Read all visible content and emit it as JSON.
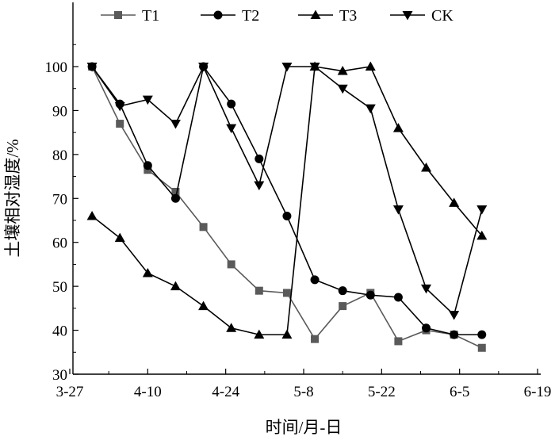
{
  "chart_data": {
    "type": "line",
    "title": "",
    "xlabel": "时间/月-日",
    "ylabel": "土壤相对湿度/%",
    "x_ticks": [
      "3-27",
      "4-10",
      "4-24",
      "5-8",
      "5-22",
      "6-5",
      "6-19"
    ],
    "x_tick_days": [
      0,
      14,
      28,
      42,
      56,
      70,
      84
    ],
    "xlim": [
      0,
      84
    ],
    "y_ticks": [
      30,
      40,
      50,
      60,
      70,
      80,
      90,
      100
    ],
    "ylim": [
      30,
      100
    ],
    "grid": false,
    "legend_position": "top",
    "series": [
      {
        "name": "T1",
        "marker": "square",
        "color": "#5a5a5a",
        "x": [
          4,
          9,
          14,
          19,
          24,
          29,
          34,
          39,
          44,
          49,
          54,
          59,
          64,
          69,
          74
        ],
        "y": [
          100,
          87,
          76.5,
          71.5,
          63.5,
          55,
          49,
          48.5,
          38,
          45.5,
          48.5,
          37.5,
          40,
          39,
          36
        ]
      },
      {
        "name": "T2",
        "marker": "circle",
        "color": "#000000",
        "x": [
          4,
          9,
          14,
          19,
          24,
          29,
          34,
          39,
          44,
          49,
          54,
          59,
          64,
          69,
          74
        ],
        "y": [
          100,
          91.5,
          77.5,
          70,
          100,
          91.5,
          79,
          66,
          51.5,
          49,
          48,
          47.5,
          40.5,
          39,
          39
        ]
      },
      {
        "name": "T3",
        "marker": "triangle-up",
        "color": "#000000",
        "x": [
          4,
          9,
          14,
          19,
          24,
          29,
          34,
          39,
          44,
          49,
          54,
          59,
          64,
          69,
          74
        ],
        "y": [
          66,
          61,
          53,
          50,
          45.5,
          40.5,
          39,
          39,
          100,
          99,
          100,
          86,
          77,
          69,
          61.5
        ]
      },
      {
        "name": "CK",
        "marker": "triangle-down",
        "color": "#000000",
        "x": [
          4,
          9,
          14,
          19,
          24,
          29,
          34,
          39,
          44,
          49,
          54,
          59,
          64,
          69,
          74
        ],
        "y": [
          100,
          91,
          92.5,
          87,
          100,
          86,
          73,
          100,
          100,
          95,
          90.5,
          67.5,
          49.5,
          43.5,
          67.5
        ]
      }
    ]
  }
}
